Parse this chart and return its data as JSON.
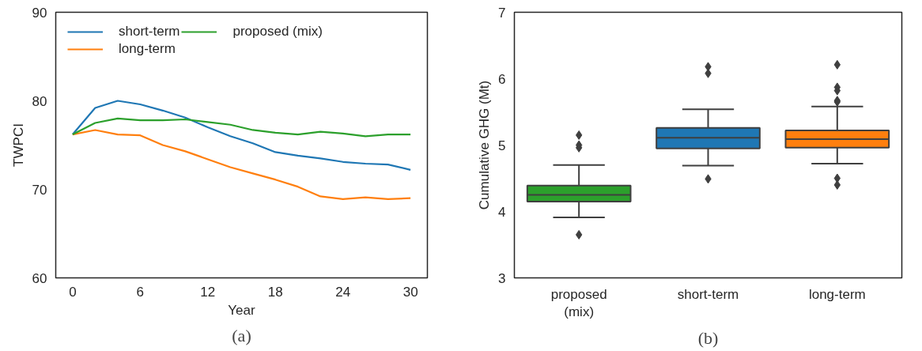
{
  "chart_data": [
    {
      "type": "line",
      "xlabel": "Year",
      "ylabel": "TWPCI",
      "x": [
        0,
        2,
        4,
        6,
        8,
        10,
        12,
        14,
        16,
        18,
        20,
        22,
        24,
        26,
        28,
        30
      ],
      "series": [
        {
          "name": "short-term",
          "color": "#1f77b4",
          "values": [
            76.2,
            79.2,
            80.0,
            79.6,
            78.9,
            78.1,
            77.0,
            76.0,
            75.2,
            74.2,
            73.8,
            73.5,
            73.1,
            72.9,
            72.8,
            72.2
          ]
        },
        {
          "name": "long-term",
          "color": "#ff7f0e",
          "values": [
            76.2,
            76.7,
            76.2,
            76.1,
            75.0,
            74.3,
            73.4,
            72.5,
            71.8,
            71.1,
            70.3,
            69.2,
            68.9,
            69.1,
            68.9,
            69.0
          ]
        },
        {
          "name": "proposed (mix)",
          "color": "#2ca02c",
          "values": [
            76.2,
            77.5,
            78.0,
            77.8,
            77.8,
            77.9,
            77.6,
            77.3,
            76.7,
            76.4,
            76.2,
            76.5,
            76.3,
            76.0,
            76.2,
            76.2
          ]
        }
      ],
      "xlim": [
        -1.5,
        31.5
      ],
      "xticks": [
        0,
        6,
        12,
        18,
        24,
        30
      ],
      "ylim": [
        60,
        90
      ],
      "yticks": [
        60,
        70,
        80,
        90
      ],
      "grid": false,
      "legend": "top left",
      "line_style": "solid",
      "marker": "none",
      "annotations": [
        "(a)"
      ]
    },
    {
      "type": "box",
      "ylabel": "Cumulative GHG (Mt)",
      "categories": [
        "proposed (mix)",
        "short-term",
        "long-term"
      ],
      "colors": [
        "#2ca02c",
        "#1f77b4",
        "#ff7f0e"
      ],
      "boxes": [
        {
          "low": 3.91,
          "q1": 4.15,
          "median": 4.25,
          "q3": 4.39,
          "high": 4.7,
          "outliers": [
            5.15,
            5.0,
            4.96,
            3.65
          ]
        },
        {
          "low": 4.69,
          "q1": 4.95,
          "median": 5.11,
          "q3": 5.26,
          "high": 5.54,
          "outliers": [
            6.18,
            6.08,
            4.49
          ]
        },
        {
          "low": 4.72,
          "q1": 4.96,
          "median": 5.09,
          "q3": 5.22,
          "high": 5.58,
          "outliers": [
            6.21,
            5.87,
            5.82,
            5.67,
            5.65,
            4.5,
            4.4
          ]
        }
      ],
      "ylim": [
        3,
        7
      ],
      "yticks": [
        3,
        4,
        5,
        6,
        7
      ],
      "grid": false,
      "marker": "diamond",
      "annotations": [
        "(b)"
      ]
    }
  ]
}
